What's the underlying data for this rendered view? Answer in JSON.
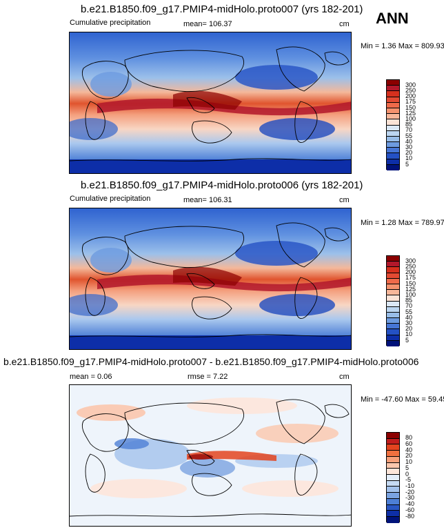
{
  "season": "ANN",
  "panels": [
    {
      "title": "b.e21.B1850.f09_g17.PMIP4-midHolo.proto007 (yrs 182-201)",
      "left_label": "Cumulative precipitation",
      "center_label": "mean= 106.37",
      "units": "cm",
      "minmax": "Min =   1.36 Max = 809.93",
      "colorbar": {
        "labels": [
          "300",
          "250",
          "200",
          "175",
          "150",
          "125",
          "100",
          "85",
          "70",
          "55",
          "40",
          "30",
          "20",
          "10",
          "5"
        ],
        "colors": [
          "#8b0000",
          "#b2182b",
          "#d6301e",
          "#e34a33",
          "#ef6a4a",
          "#f4926e",
          "#f8b79a",
          "#fbe3d6",
          "#dbe8f6",
          "#bcd6f1",
          "#98bde8",
          "#6d9be0",
          "#4676d6",
          "#2451c4",
          "#0d2ea8",
          "#00127a"
        ]
      }
    },
    {
      "title": "b.e21.B1850.f09_g17.PMIP4-midHolo.proto006 (yrs 182-201)",
      "left_label": "Cumulative precipitation",
      "center_label": "mean= 106.31",
      "units": "cm",
      "minmax": "Min =   1.28 Max = 789.97",
      "colorbar": {
        "labels": [
          "300",
          "250",
          "200",
          "175",
          "150",
          "125",
          "100",
          "85",
          "70",
          "55",
          "40",
          "30",
          "20",
          "10",
          "5"
        ],
        "colors": [
          "#8b0000",
          "#b2182b",
          "#d6301e",
          "#e34a33",
          "#ef6a4a",
          "#f4926e",
          "#f8b79a",
          "#fbe3d6",
          "#dbe8f6",
          "#bcd6f1",
          "#98bde8",
          "#6d9be0",
          "#4676d6",
          "#2451c4",
          "#0d2ea8",
          "#00127a"
        ]
      }
    },
    {
      "title": "b.e21.B1850.f09_g17.PMIP4-midHolo.proto007 - b.e21.B1850.f09_g17.PMIP4-midHolo.proto006",
      "left_label": "mean =   0.06",
      "center_label": "rmse =   7.22",
      "units": "cm",
      "minmax": "Min = -47.60 Max =  59.45",
      "colorbar": {
        "labels": [
          "80",
          "60",
          "40",
          "20",
          "10",
          "5",
          "0",
          "-5",
          "-10",
          "-20",
          "-30",
          "-40",
          "-60",
          "-80"
        ],
        "colors": [
          "#8b0000",
          "#c21d1d",
          "#e3441f",
          "#f0703f",
          "#f7a07a",
          "#fbc7ad",
          "#fde6da",
          "#e4eefa",
          "#c6dbf4",
          "#a3c2ec",
          "#7aa3e1",
          "#4d7fd6",
          "#2a57c4",
          "#0e2fa6",
          "#00137a"
        ]
      }
    }
  ]
}
